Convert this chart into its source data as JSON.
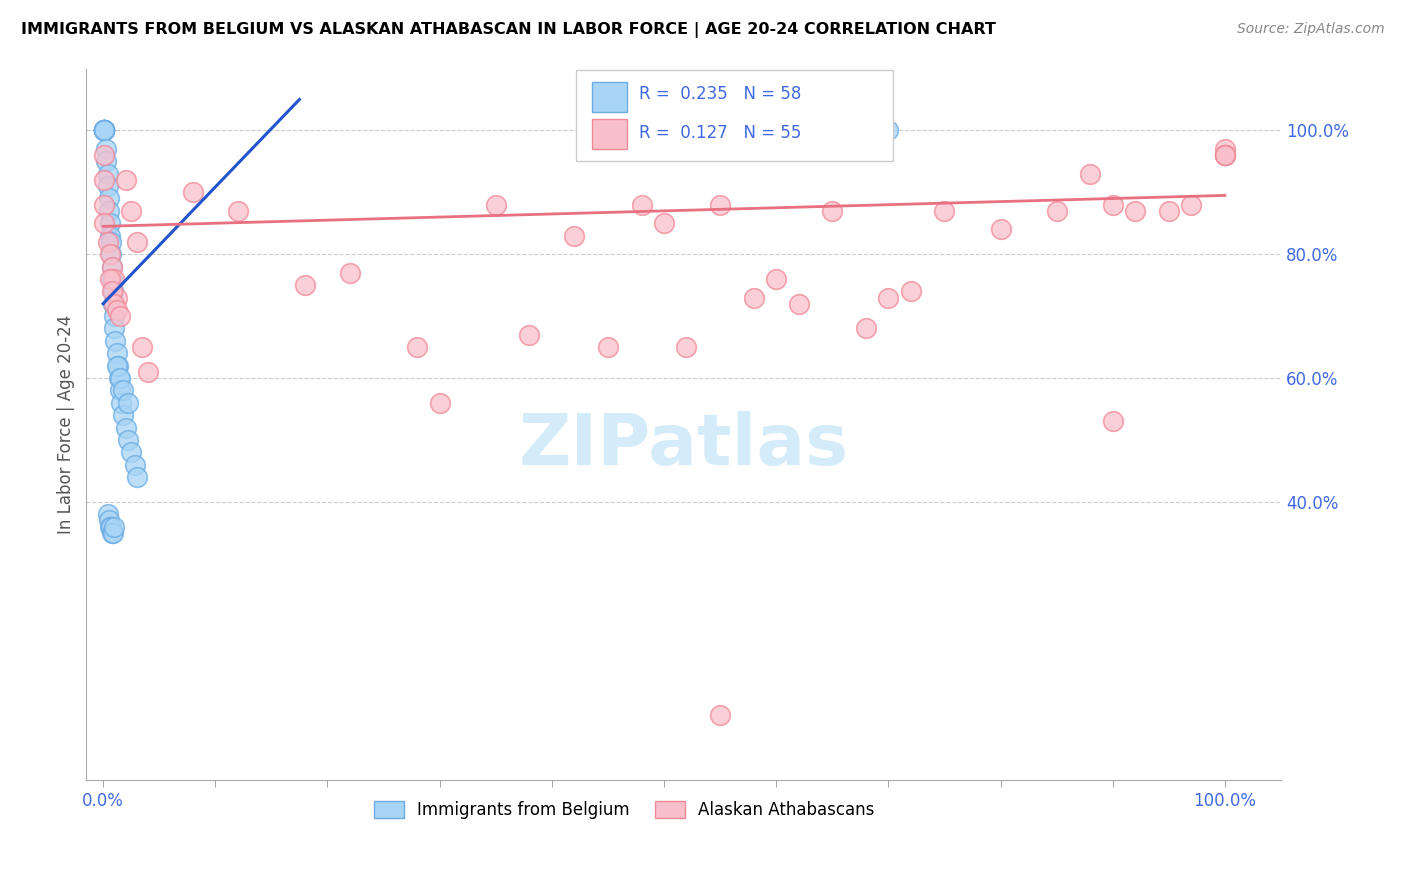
{
  "title": "IMMIGRANTS FROM BELGIUM VS ALASKAN ATHABASCAN IN LABOR FORCE | AGE 20-24 CORRELATION CHART",
  "source": "Source: ZipAtlas.com",
  "ylabel": "In Labor Force | Age 20-24",
  "R1": 0.235,
  "N1": 58,
  "R2": 0.127,
  "N2": 55,
  "legend1_label": "Immigrants from Belgium",
  "legend2_label": "Alaskan Athabascans",
  "color_blue_face": "#a8d4f5",
  "color_blue_edge": "#6aade4",
  "color_pink_face": "#f9c0cb",
  "color_pink_edge": "#f08898",
  "color_blue_line": "#2255cc",
  "color_pink_line": "#e87080",
  "color_text_blue": "#4169E1",
  "color_grid": "#cccccc",
  "color_source": "#888888",
  "color_ylabel": "#555555",
  "blue_x": [
    0.001,
    0.001,
    0.001,
    0.001,
    0.001,
    0.001,
    0.001,
    0.001,
    0.001,
    0.001,
    0.001,
    0.001,
    0.003,
    0.003,
    0.004,
    0.004,
    0.005,
    0.005,
    0.006,
    0.006,
    0.007,
    0.007,
    0.008,
    0.008,
    0.009,
    0.009,
    0.01,
    0.01,
    0.011,
    0.012,
    0.013,
    0.014,
    0.015,
    0.016,
    0.018,
    0.02,
    0.022,
    0.025,
    0.028,
    0.03,
    0.004,
    0.005,
    0.006,
    0.007,
    0.008,
    0.009,
    0.01,
    0.012,
    0.015,
    0.018,
    0.022,
    0.55,
    0.57,
    0.6,
    0.62,
    0.65,
    0.68,
    0.7
  ],
  "blue_y": [
    1.0,
    1.0,
    1.0,
    1.0,
    1.0,
    1.0,
    1.0,
    1.0,
    1.0,
    1.0,
    1.0,
    1.0,
    0.97,
    0.95,
    0.93,
    0.91,
    0.89,
    0.87,
    0.85,
    0.83,
    0.82,
    0.8,
    0.78,
    0.76,
    0.74,
    0.72,
    0.7,
    0.68,
    0.66,
    0.64,
    0.62,
    0.6,
    0.58,
    0.56,
    0.54,
    0.52,
    0.5,
    0.48,
    0.46,
    0.44,
    0.38,
    0.37,
    0.36,
    0.36,
    0.35,
    0.35,
    0.36,
    0.62,
    0.6,
    0.58,
    0.56,
    1.0,
    1.0,
    1.0,
    1.0,
    1.0,
    1.0,
    1.0
  ],
  "pink_x": [
    0.001,
    0.001,
    0.001,
    0.001,
    0.004,
    0.006,
    0.008,
    0.01,
    0.012,
    0.02,
    0.025,
    0.03,
    0.035,
    0.04,
    0.08,
    0.12,
    0.18,
    0.22,
    0.28,
    0.3,
    0.35,
    0.38,
    0.42,
    0.45,
    0.48,
    0.5,
    0.52,
    0.55,
    0.58,
    0.6,
    0.62,
    0.65,
    0.68,
    0.7,
    0.75,
    0.8,
    0.85,
    0.88,
    0.9,
    0.92,
    0.95,
    0.97,
    1.0,
    1.0,
    1.0,
    1.0,
    1.0,
    0.006,
    0.008,
    0.01,
    0.012,
    0.015,
    0.55,
    0.72,
    0.9
  ],
  "pink_y": [
    0.96,
    0.92,
    0.88,
    0.85,
    0.82,
    0.8,
    0.78,
    0.76,
    0.73,
    0.92,
    0.87,
    0.82,
    0.65,
    0.61,
    0.9,
    0.87,
    0.75,
    0.77,
    0.65,
    0.56,
    0.88,
    0.67,
    0.83,
    0.65,
    0.88,
    0.85,
    0.65,
    0.88,
    0.73,
    0.76,
    0.72,
    0.87,
    0.68,
    0.73,
    0.87,
    0.84,
    0.87,
    0.93,
    0.88,
    0.87,
    0.87,
    0.88,
    0.97,
    0.96,
    0.96,
    0.96,
    0.96,
    0.76,
    0.74,
    0.72,
    0.71,
    0.7,
    0.055,
    0.74,
    0.53
  ],
  "blue_line_x": [
    0.0,
    0.175
  ],
  "blue_line_y": [
    0.72,
    1.05
  ],
  "pink_line_x": [
    0.0,
    1.0
  ],
  "pink_line_y": [
    0.845,
    0.895
  ],
  "xlim": [
    -0.015,
    1.05
  ],
  "ylim": [
    -0.05,
    1.1
  ],
  "yticks": [
    0.4,
    0.6,
    0.8,
    1.0
  ],
  "ytick_labels": [
    "40.0%",
    "60.0%",
    "80.0%",
    "100.0%"
  ],
  "xticks": [
    0.0,
    0.1,
    0.2,
    0.3,
    0.4,
    0.5,
    0.6,
    0.7,
    0.8,
    0.9,
    1.0
  ],
  "xtick_labels": [
    "0.0%",
    "",
    "",
    "",
    "",
    "",
    "",
    "",
    "",
    "",
    "100.0%"
  ],
  "watermark": "ZIPatlas",
  "watermark_color": "#cde8f8"
}
